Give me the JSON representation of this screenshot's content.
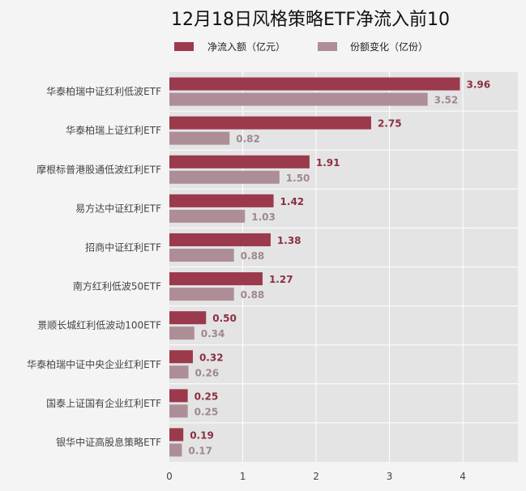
{
  "chart_data": {
    "type": "bar",
    "orientation": "horizontal",
    "title": "12月18日风格策略ETF净流入前10",
    "categories": [
      "华泰柏瑞中证红利低波ETF",
      "华泰柏瑞上证红利ETF",
      "摩根标普港股通低波红利ETF",
      "易方达中证红利ETF",
      "招商中证红利ETF",
      "南方红利低波50ETF",
      "景顺长城红利低波动100ETF",
      "华泰柏瑞中证中央企业红利ETF",
      "国泰上证国有企业红利ETF",
      "银华中证高股息策略ETF"
    ],
    "series": [
      {
        "name": "净流入额（亿元）",
        "color": "#9b3a4d",
        "label_color": "#8c2f42",
        "values": [
          3.96,
          2.75,
          1.91,
          1.42,
          1.38,
          1.27,
          0.5,
          0.32,
          0.25,
          0.19
        ],
        "labels": [
          "3.96",
          "2.75",
          "1.91",
          "1.42",
          "1.38",
          "1.27",
          "0.50",
          "0.32",
          "0.25",
          "0.19"
        ]
      },
      {
        "name": "份额变化（亿份）",
        "color": "#ad8e97",
        "label_color": "#a08890",
        "values": [
          3.52,
          0.82,
          1.5,
          1.03,
          0.88,
          0.88,
          0.34,
          0.26,
          0.25,
          0.17
        ],
        "labels": [
          "3.52",
          "0.82",
          "1.50",
          "1.03",
          "0.88",
          "0.88",
          "0.34",
          "0.26",
          "0.25",
          "0.17"
        ]
      }
    ],
    "xlim": [
      0,
      4.75
    ],
    "xticks": [
      "0",
      "1",
      "2",
      "3",
      "4"
    ],
    "xlabel": "",
    "ylabel": "",
    "legend_position": "top",
    "grid": "vertical",
    "plot_background": "#e4e4e4",
    "gridline_color": "#ffffff"
  }
}
